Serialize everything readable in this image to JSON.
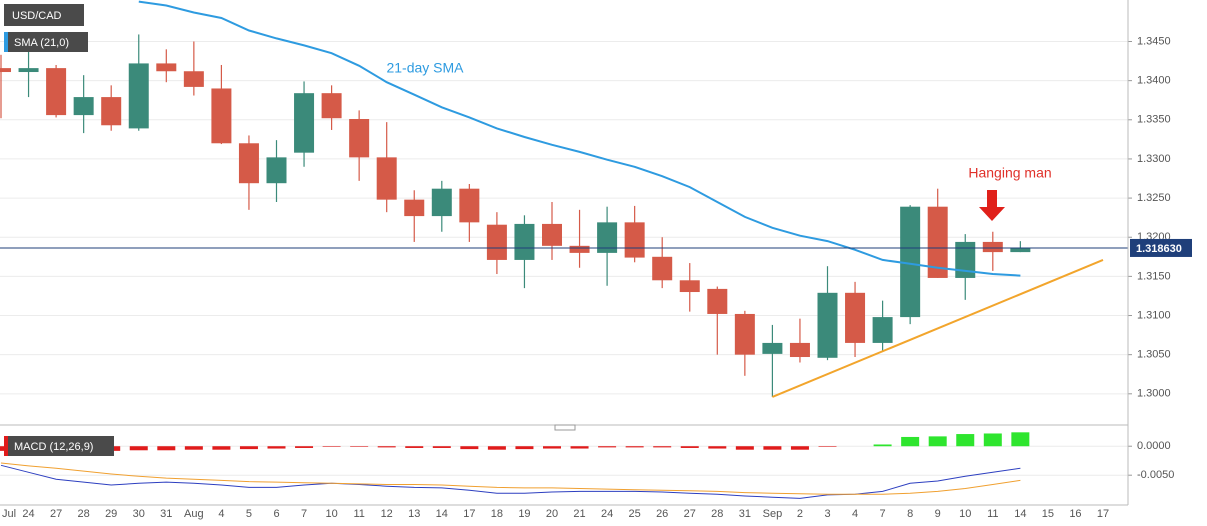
{
  "chart_data": [
    {
      "type": "candlestick",
      "title": "USD/CAD",
      "indicator": "SMA (21,0)",
      "categories": [
        "Jul",
        "24",
        "27",
        "28",
        "29",
        "30",
        "31",
        "Aug",
        "4",
        "5",
        "6",
        "7",
        "10",
        "11",
        "12",
        "13",
        "14",
        "17",
        "18",
        "19",
        "20",
        "21",
        "24",
        "25",
        "26",
        "27",
        "28",
        "31",
        "Sep",
        "2",
        "3",
        "4",
        "7",
        "8",
        "9",
        "10",
        "11",
        "14",
        "15",
        "16",
        "17"
      ],
      "open": [
        1.3416,
        1.3411,
        1.3416,
        1.3356,
        1.3379,
        1.3339,
        1.3422,
        1.3412,
        1.339,
        1.332,
        1.3269,
        1.3308,
        1.3384,
        1.3351,
        1.3302,
        1.3248,
        1.3227,
        1.3262,
        1.3216,
        1.3171,
        1.3217,
        1.3189,
        1.318,
        1.3219,
        1.3175,
        1.3145,
        1.3134,
        1.3102,
        1.3051,
        1.3065,
        1.3046,
        1.3129,
        1.3065,
        1.3098,
        1.3239,
        1.3148,
        1.3194,
        1.3181,
        null,
        null,
        null
      ],
      "high": [
        1.3433,
        1.3439,
        1.342,
        1.3407,
        1.3394,
        1.3459,
        1.344,
        1.345,
        1.342,
        1.333,
        1.3324,
        1.3399,
        1.3394,
        1.3362,
        1.3347,
        1.326,
        1.3272,
        1.3268,
        1.3232,
        1.3228,
        1.3245,
        1.3235,
        1.3239,
        1.324,
        1.32,
        1.3167,
        1.3137,
        1.3106,
        1.3088,
        1.3096,
        1.3163,
        1.3143,
        1.3119,
        1.3241,
        1.3262,
        1.3204,
        1.3207,
        1.3195,
        null,
        null,
        null
      ],
      "low": [
        1.3352,
        1.3379,
        1.3353,
        1.3333,
        1.3336,
        1.3336,
        1.3398,
        1.3381,
        1.3319,
        1.3235,
        1.3245,
        1.329,
        1.3337,
        1.3272,
        1.3232,
        1.3194,
        1.3207,
        1.3194,
        1.3153,
        1.3135,
        1.3171,
        1.3161,
        1.3138,
        1.3168,
        1.3135,
        1.3105,
        1.305,
        1.3023,
        1.2996,
        1.304,
        1.3043,
        1.3047,
        1.3055,
        1.3089,
        1.3148,
        1.312,
        1.3157,
        1.3181,
        null,
        null,
        null
      ],
      "close": [
        1.3411,
        1.3416,
        1.3356,
        1.3379,
        1.3343,
        1.3422,
        1.3412,
        1.3392,
        1.332,
        1.3269,
        1.3302,
        1.3384,
        1.3352,
        1.3302,
        1.3248,
        1.3227,
        1.3262,
        1.3219,
        1.3171,
        1.3217,
        1.3189,
        1.318,
        1.3219,
        1.3174,
        1.3145,
        1.313,
        1.3102,
        1.305,
        1.3065,
        1.3047,
        1.3129,
        1.3065,
        1.3098,
        1.3239,
        1.3148,
        1.3194,
        1.3181,
        1.3186,
        null,
        null,
        null
      ],
      "up_color": "#3b8a7a",
      "down_color": "#d55a48",
      "sma": {
        "color": "#2e9be0",
        "values": [
          null,
          null,
          null,
          null,
          null,
          1.3501,
          1.3496,
          1.3487,
          1.348,
          1.3464,
          1.3454,
          1.3445,
          1.3435,
          1.3419,
          1.3398,
          1.3382,
          1.3366,
          1.3353,
          1.3339,
          1.3328,
          1.3318,
          1.3309,
          1.3299,
          1.329,
          1.3278,
          1.3264,
          1.3245,
          1.3226,
          1.3212,
          1.3202,
          1.3195,
          1.3184,
          1.3171,
          1.3166,
          1.3161,
          1.3157,
          1.3153,
          1.3151,
          null,
          null,
          null
        ]
      },
      "trend_line": {
        "color": "#f2a52c",
        "x": [
          "Sep",
          "17"
        ],
        "values": [
          1.2996,
          1.3171
        ]
      },
      "last_price": {
        "value": 1.31863,
        "label": "1.318630",
        "color": "#1f3f7a"
      },
      "annotations": [
        "21-day SMA",
        "Hanging man"
      ],
      "ylim": [
        1.2964,
        1.3503
      ],
      "yticks": [
        {
          "value": 1.3,
          "label": "1.3000"
        },
        {
          "value": 1.305,
          "label": "1.3050"
        },
        {
          "value": 1.31,
          "label": "1.3100"
        },
        {
          "value": 1.315,
          "label": "1.3150"
        },
        {
          "value": 1.32,
          "label": "1.3200"
        },
        {
          "value": 1.325,
          "label": "1.3250"
        },
        {
          "value": 1.33,
          "label": "1.3300"
        },
        {
          "value": 1.335,
          "label": "1.3350"
        },
        {
          "value": 1.34,
          "label": "1.3400"
        },
        {
          "value": 1.345,
          "label": "1.3450"
        }
      ],
      "grid": true
    },
    {
      "type": "macd",
      "title": "MACD (12,26,9)",
      "histogram": {
        "positive_color": "#2ee52e",
        "negative_color": "#e01b1b",
        "values": [
          -0.0008,
          -0.0009,
          -0.0009,
          -0.0009,
          -0.0008,
          -0.0007,
          -0.0007,
          -0.0006,
          -0.0006,
          -0.0005,
          -0.0004,
          -0.0003,
          -0.0001,
          -0.0001,
          -0.0002,
          -0.0003,
          -0.0003,
          -0.0005,
          -0.0006,
          -0.0005,
          -0.0004,
          -0.0004,
          -0.0002,
          -0.0002,
          -0.0002,
          -0.0003,
          -0.0004,
          -0.0006,
          -0.0006,
          -0.0006,
          -0.0001,
          0,
          0.0003,
          0.0016,
          0.0017,
          0.0021,
          0.0022,
          0.0024,
          null,
          null,
          null
        ]
      },
      "series": [
        {
          "color": "#2d3fc0",
          "values": [
            -0.0033,
            -0.0045,
            -0.0057,
            -0.0062,
            -0.0067,
            -0.0064,
            -0.0062,
            -0.0064,
            -0.0067,
            -0.0071,
            -0.0071,
            -0.0067,
            -0.0064,
            -0.0066,
            -0.0069,
            -0.0071,
            -0.0072,
            -0.0076,
            -0.0081,
            -0.0081,
            -0.0079,
            -0.0078,
            -0.0078,
            -0.0078,
            -0.0079,
            -0.0081,
            -0.0083,
            -0.0086,
            -0.0088,
            -0.009,
            -0.0084,
            -0.0083,
            -0.0078,
            -0.0064,
            -0.006,
            -0.0052,
            -0.0045,
            -0.0038,
            null,
            null,
            null
          ]
        },
        {
          "color": "#f0a030",
          "values": [
            -0.0029,
            -0.0034,
            -0.0038,
            -0.0043,
            -0.0048,
            -0.0052,
            -0.0055,
            -0.0057,
            -0.0059,
            -0.0061,
            -0.0062,
            -0.0063,
            -0.0064,
            -0.0065,
            -0.0066,
            -0.0066,
            -0.0067,
            -0.0069,
            -0.0071,
            -0.0072,
            -0.0072,
            -0.0073,
            -0.0074,
            -0.0075,
            -0.0076,
            -0.0077,
            -0.0078,
            -0.008,
            -0.0081,
            -0.0082,
            -0.0083,
            -0.0083,
            -0.0083,
            -0.0081,
            -0.0078,
            -0.0073,
            -0.0066,
            -0.0059,
            null,
            null,
            null
          ]
        }
      ],
      "ylim": [
        -0.0098,
        0.0028
      ],
      "yticks": [
        {
          "value": -0.005,
          "label": "-0.0050"
        },
        {
          "value": 0,
          "label": "0.0000"
        }
      ],
      "grid": true
    }
  ]
}
